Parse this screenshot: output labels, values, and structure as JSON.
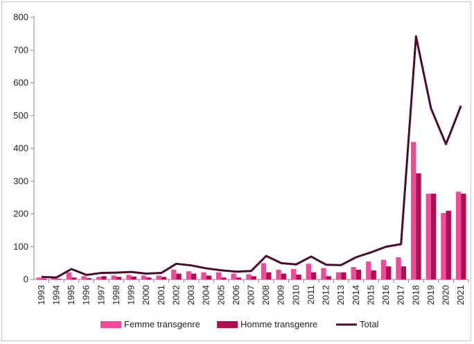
{
  "chart_data": {
    "type": "bar",
    "title": "",
    "xlabel": "",
    "ylabel": "",
    "ylim": [
      0,
      800
    ],
    "yticks": [
      0,
      100,
      200,
      300,
      400,
      500,
      600,
      700,
      800
    ],
    "grid": false,
    "legend_position": "bottom",
    "categories": [
      "1993",
      "1994",
      "1995",
      "1996",
      "1997",
      "1998",
      "1999",
      "2000",
      "2001",
      "2002",
      "2003",
      "2004",
      "2005",
      "2006",
      "2007",
      "2008",
      "2009",
      "2010",
      "2011",
      "2012",
      "2013",
      "2014",
      "2015",
      "2016",
      "2017",
      "2018",
      "2019",
      "2020",
      "2021"
    ],
    "series": [
      {
        "name": "Femme transgenre",
        "kind": "bar",
        "color": "#f04a9a",
        "values": [
          6,
          4,
          22,
          10,
          8,
          12,
          14,
          12,
          12,
          30,
          25,
          22,
          22,
          18,
          16,
          50,
          30,
          32,
          48,
          35,
          22,
          38,
          55,
          60,
          68,
          420,
          262,
          203,
          268
        ]
      },
      {
        "name": "Homme transgenre",
        "kind": "bar",
        "color": "#b0104f",
        "values": [
          3,
          2,
          6,
          4,
          10,
          8,
          9,
          6,
          8,
          18,
          18,
          12,
          6,
          6,
          10,
          22,
          18,
          15,
          22,
          10,
          22,
          30,
          28,
          40,
          40,
          324,
          262,
          210,
          262
        ]
      },
      {
        "name": "Total",
        "kind": "line",
        "color": "#4a0a2e",
        "values": [
          8,
          6,
          32,
          14,
          20,
          21,
          23,
          18,
          20,
          48,
          43,
          34,
          28,
          24,
          26,
          72,
          50,
          46,
          70,
          45,
          44,
          68,
          83,
          100,
          108,
          742,
          522,
          413,
          530
        ]
      }
    ]
  }
}
